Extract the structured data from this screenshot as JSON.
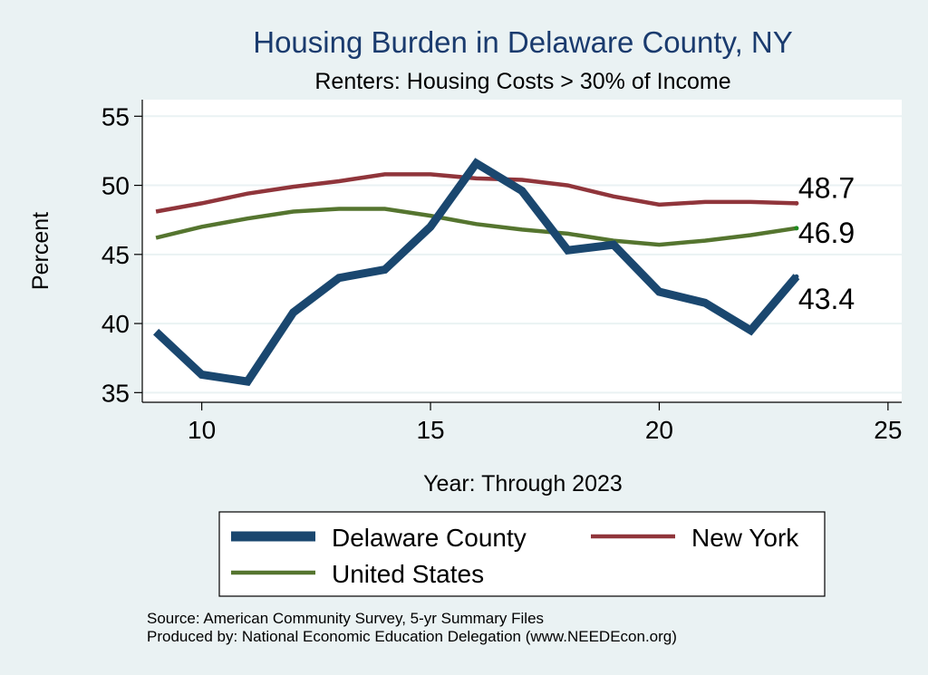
{
  "chart_data": {
    "type": "line",
    "title": "Housing Burden in Delaware County, NY",
    "subtitle": "Renters: Housing Costs > 30% of Income",
    "xlabel": "Year: Through 2023",
    "ylabel": "Percent",
    "xlim": [
      8.7,
      25.3
    ],
    "ylim": [
      34.3,
      56.2
    ],
    "xticks": [
      10,
      15,
      20,
      25
    ],
    "yticks": [
      35,
      40,
      45,
      50,
      55
    ],
    "x": [
      9,
      10,
      11,
      12,
      13,
      14,
      15,
      16,
      17,
      18,
      19,
      20,
      21,
      22,
      23
    ],
    "series": [
      {
        "name": "Delaware County",
        "color": "#1a476f",
        "values": [
          39.4,
          36.3,
          35.8,
          40.8,
          43.3,
          43.9,
          47.0,
          51.6,
          49.6,
          45.3,
          45.7,
          42.3,
          41.5,
          39.5,
          43.4
        ],
        "end_label": "43.4"
      },
      {
        "name": "New York",
        "color": "#90353b",
        "values": [
          48.1,
          48.7,
          49.4,
          49.9,
          50.3,
          50.8,
          50.8,
          50.5,
          50.4,
          50.0,
          49.2,
          48.6,
          48.8,
          48.8,
          48.7
        ],
        "end_label": "48.7"
      },
      {
        "name": "United States",
        "color": "#55752f",
        "values": [
          46.2,
          47.0,
          47.6,
          48.1,
          48.3,
          48.3,
          47.8,
          47.2,
          46.8,
          46.5,
          46.0,
          45.7,
          46.0,
          46.4,
          46.9
        ],
        "end_label": "46.9"
      }
    ],
    "legend": {
      "position": "bottom",
      "items": [
        "Delaware County",
        "New York",
        "United States"
      ]
    },
    "notes": [
      "Source: American Community Survey, 5-yr Summary Files",
      "Produced by: National Economic Education Delegation (www.NEEDEcon.org)"
    ]
  }
}
